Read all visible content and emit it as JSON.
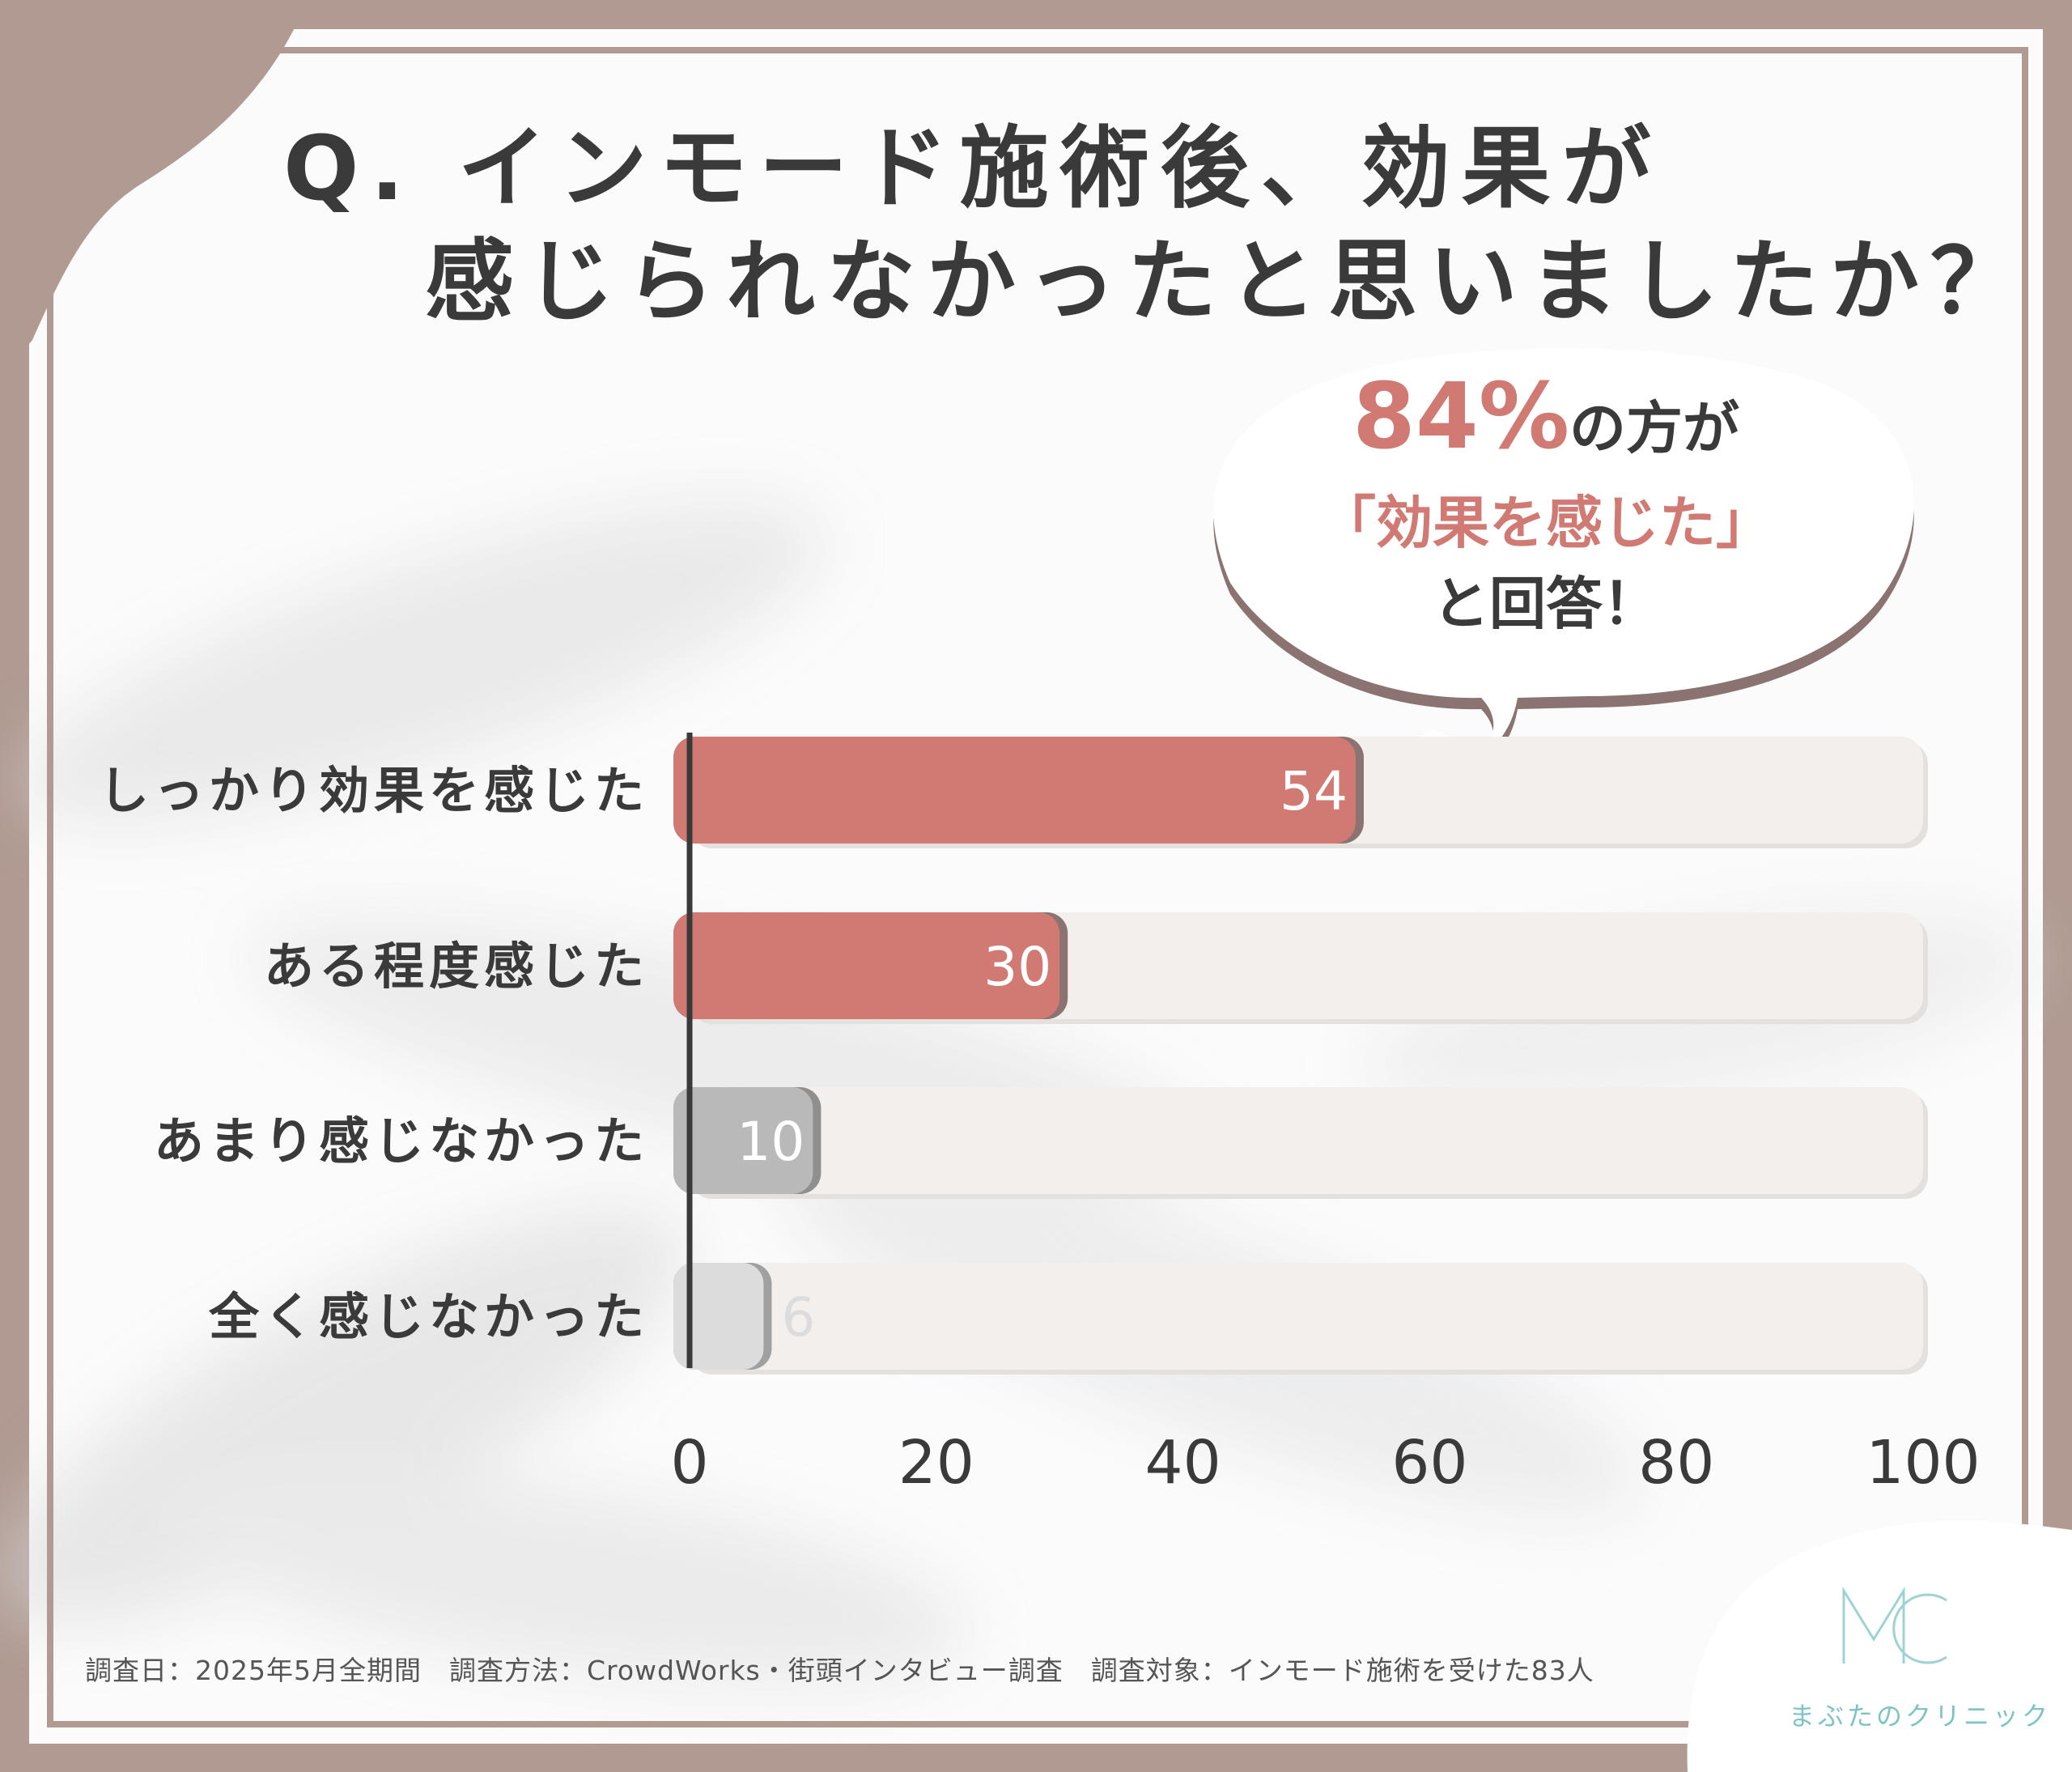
{
  "question": {
    "line1": "Q. インモード施術後、効果が",
    "line2": "感じられなかったと思いましたか？"
  },
  "callout": {
    "percent": "84%",
    "line1_rest": "の方が",
    "line2": "「効果を感じた」",
    "line3": "と回答！"
  },
  "chart_data": {
    "type": "bar",
    "orientation": "horizontal",
    "categories": [
      "しっかり効果を感じた",
      "ある程度感じた",
      "あまり感じなかった",
      "全く感じなかった"
    ],
    "values": [
      54,
      30,
      10,
      6
    ],
    "value_labels": [
      "54",
      "30",
      "10",
      "6"
    ],
    "xlim": [
      0,
      100
    ],
    "xticks": [
      0,
      20,
      40,
      60,
      80,
      100
    ],
    "xtick_labels": [
      "0",
      "20",
      "40",
      "60",
      "80",
      "100"
    ],
    "bar_colors": [
      "#d17a74",
      "#d17a74",
      "#b9b9b9",
      "#dcdcdc"
    ],
    "bar_shadow_colors": [
      "#8a7370",
      "#8a7370",
      "#8f8f8f",
      "#a0a0a0"
    ],
    "label_colors": [
      "#ffffff",
      "#ffffff",
      "#ffffff",
      "#dcdcdc"
    ],
    "track_color": "#f2efed",
    "grid": false,
    "legend": "none"
  },
  "footnote": {
    "date": "調査日：2025年5月全期間",
    "method": "調査方法：CrowdWorks・街頭インタビュー調査",
    "target": "調査対象：インモード施術を受けた83人"
  },
  "logo": {
    "mark": "MC",
    "text": "まぶたのクリニック",
    "color": "#7dc4c4"
  },
  "colors": {
    "frame": "#b09a92",
    "accent": "#d17a74",
    "text": "#3a3a3a"
  }
}
